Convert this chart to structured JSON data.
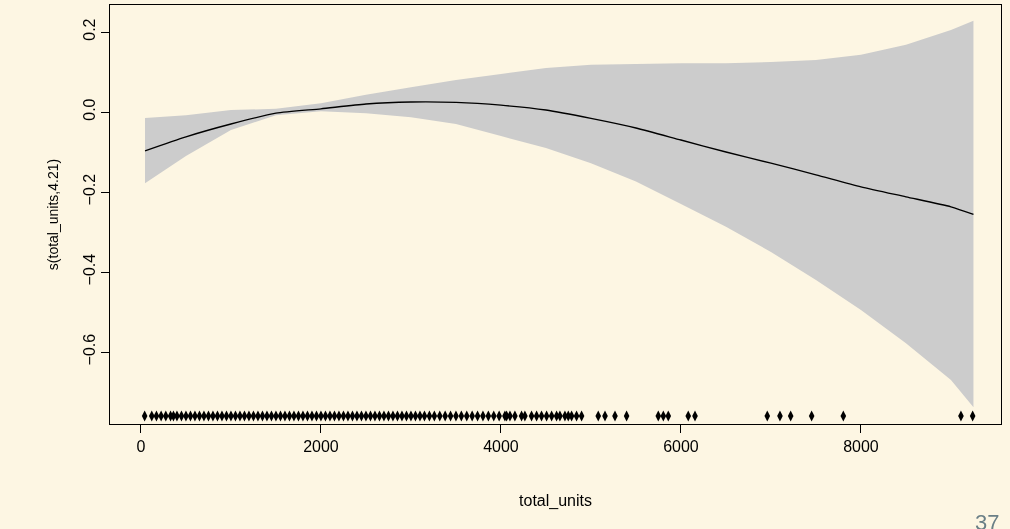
{
  "chart_data": {
    "type": "line",
    "xlabel": "total_units",
    "ylabel": "s(total_units,4.21)",
    "xlim": [
      -344,
      9556
    ],
    "ylim": [
      -0.78,
      0.2675
    ],
    "xticks": [
      0,
      2000,
      4000,
      6000,
      8000
    ],
    "yticks": [
      {
        "value": -0.6,
        "label": "−0.6"
      },
      {
        "value": -0.4,
        "label": "−0.4"
      },
      {
        "value": -0.2,
        "label": "−0.2"
      },
      {
        "value": 0.0,
        "label": "0.0"
      },
      {
        "value": 0.2,
        "label": "0.2"
      }
    ],
    "grid": false,
    "marker": "none",
    "line_style": "solid",
    "annotations": [
      "37"
    ],
    "series": [
      {
        "color": "#000000",
        "x": [
          45,
          500,
          1000,
          1500,
          2000,
          2500,
          3000,
          3500,
          4000,
          4500,
          5000,
          5500,
          6000,
          6500,
          7000,
          7500,
          8000,
          8500,
          9000,
          9250
        ],
        "values": [
          -0.097,
          -0.062,
          -0.03,
          -0.003,
          0.008,
          0.02,
          0.025,
          0.024,
          0.017,
          0.005,
          -0.016,
          -0.04,
          -0.07,
          -0.1,
          -0.128,
          -0.157,
          -0.187,
          -0.212,
          -0.237,
          -0.256
        ],
        "upper": [
          -0.015,
          -0.008,
          0.005,
          0.008,
          0.022,
          0.043,
          0.062,
          0.08,
          0.095,
          0.11,
          0.118,
          0.12,
          0.122,
          0.122,
          0.125,
          0.13,
          0.143,
          0.168,
          0.205,
          0.228
        ],
        "lower": [
          -0.178,
          -0.11,
          -0.045,
          -0.008,
          0.002,
          -0.003,
          -0.013,
          -0.03,
          -0.06,
          -0.09,
          -0.128,
          -0.174,
          -0.23,
          -0.287,
          -0.35,
          -0.42,
          -0.495,
          -0.578,
          -0.67,
          -0.738
        ]
      },
      {
        "type": "scatter",
        "color": "#000000",
        "marker": "diamond",
        "x": [
          41,
          120,
          172,
          224,
          276,
          329,
          361,
          400,
          450,
          500,
          550,
          600,
          650,
          700,
          750,
          800,
          850,
          900,
          950,
          1000,
          1050,
          1100,
          1150,
          1200,
          1250,
          1300,
          1350,
          1400,
          1450,
          1500,
          1550,
          1600,
          1650,
          1700,
          1750,
          1800,
          1850,
          1900,
          1950,
          2000,
          2050,
          2100,
          2150,
          2200,
          2250,
          2300,
          2350,
          2400,
          2450,
          2500,
          2550,
          2600,
          2650,
          2700,
          2750,
          2800,
          2850,
          2900,
          2950,
          3000,
          3050,
          3100,
          3150,
          3205,
          3260,
          3320,
          3380,
          3440,
          3500,
          3560,
          3620,
          3680,
          3740,
          3800,
          3860,
          3920,
          3980,
          4044,
          4063,
          4100,
          4155,
          4229,
          4266,
          4340,
          4396,
          4451,
          4507,
          4563,
          4618,
          4655,
          4711,
          4748,
          4785,
          4840,
          4896,
          5081,
          5156,
          5267,
          5396,
          5748,
          5804,
          5859,
          6081,
          6156,
          6959,
          7100,
          7219,
          7452,
          7804,
          9111,
          9241
        ],
        "values": [
          -0.76,
          -0.76,
          -0.76,
          -0.76,
          -0.76,
          -0.76,
          -0.76,
          -0.76,
          -0.76,
          -0.76,
          -0.76,
          -0.76,
          -0.76,
          -0.76,
          -0.76,
          -0.76,
          -0.76,
          -0.76,
          -0.76,
          -0.76,
          -0.76,
          -0.76,
          -0.76,
          -0.76,
          -0.76,
          -0.76,
          -0.76,
          -0.76,
          -0.76,
          -0.76,
          -0.76,
          -0.76,
          -0.76,
          -0.76,
          -0.76,
          -0.76,
          -0.76,
          -0.76,
          -0.76,
          -0.76,
          -0.76,
          -0.76,
          -0.76,
          -0.76,
          -0.76,
          -0.76,
          -0.76,
          -0.76,
          -0.76,
          -0.76,
          -0.76,
          -0.76,
          -0.76,
          -0.76,
          -0.76,
          -0.76,
          -0.76,
          -0.76,
          -0.76,
          -0.76,
          -0.76,
          -0.76,
          -0.76,
          -0.76,
          -0.76,
          -0.76,
          -0.76,
          -0.76,
          -0.76,
          -0.76,
          -0.76,
          -0.76,
          -0.76,
          -0.76,
          -0.76,
          -0.76,
          -0.76,
          -0.76,
          -0.76,
          -0.76,
          -0.76,
          -0.76,
          -0.76,
          -0.76,
          -0.76,
          -0.76,
          -0.76,
          -0.76,
          -0.76,
          -0.76,
          -0.76,
          -0.76,
          -0.76,
          -0.76,
          -0.76,
          -0.76,
          -0.76,
          -0.76,
          -0.76,
          -0.76,
          -0.76,
          -0.76,
          -0.76,
          -0.76,
          -0.76,
          -0.76,
          -0.76,
          -0.76,
          -0.76,
          -0.76,
          -0.76
        ]
      }
    ]
  }
}
